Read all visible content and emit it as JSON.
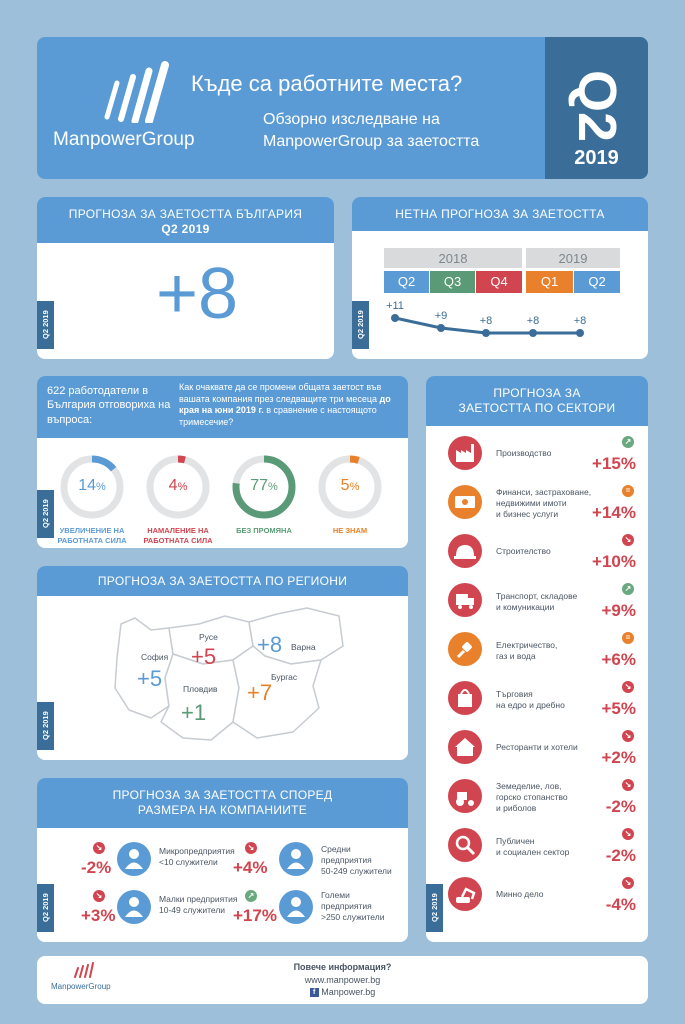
{
  "header": {
    "brand": "ManpowerGroup",
    "title": "Къде са работните места?",
    "subtitle_line1": "Обзорно изследване на",
    "subtitle_line2": "ManpowerGroup за заетостта",
    "quarter": "Q2",
    "year": "2019"
  },
  "tag": "Q2 2019",
  "bg_forecast": {
    "title": "ПРОГНОЗА ЗА ЗАЕТОСТТА БЪЛГАРИЯ",
    "period": "Q2 2019",
    "value": "+8"
  },
  "net_forecast": {
    "title": "НЕТНА ПРОГНОЗА ЗА ЗАЕТОСТТА",
    "year_2018": "2018",
    "year_2019": "2019",
    "quarters": [
      "Q2",
      "Q3",
      "Q4",
      "Q1",
      "Q2"
    ],
    "values_label": [
      "+11",
      "+9",
      "+8",
      "+8",
      "+8"
    ],
    "values": [
      11,
      9,
      8,
      8,
      8
    ]
  },
  "survey": {
    "employers": "622 работодатели в България отговориха на въпроса:",
    "question_pre": "Как очаквате да се промени общата заетост във вашата компания през следващите три месеца ",
    "question_bold": "до края на юни 2019 г.",
    "question_post": " в сравнение с настоящото тримесечие?",
    "items": [
      {
        "pct": 14,
        "value": "14",
        "unit": "%",
        "label_line1": "УВЕЛИЧЕНИЕ НА",
        "label_line2": "РАБОТНАТА СИЛА",
        "color": "#5b9bd5"
      },
      {
        "pct": 4,
        "value": "4",
        "unit": "%",
        "label_line1": "НАМАЛЕНИЕ НА",
        "label_line2": "РАБОТНАТА СИЛА",
        "color": "#d0454f"
      },
      {
        "pct": 77,
        "value": "77",
        "unit": "%",
        "label_line1": "БЕЗ ПРОМЯНА",
        "label_line2": "",
        "color": "#5a9a76"
      },
      {
        "pct": 5,
        "value": "5",
        "unit": "%",
        "label_line1": "НЕ ЗНАМ",
        "label_line2": "",
        "color": "#e9802b"
      }
    ]
  },
  "regions": {
    "title": "ПРОГНОЗА ЗА ЗАЕТОСТТА ПО РЕГИОНИ",
    "items": [
      {
        "name": "Русе",
        "value": "+5"
      },
      {
        "name": "Варна",
        "value": "+8"
      },
      {
        "name": "София",
        "value": "+5"
      },
      {
        "name": "Пловдив",
        "value": "+1"
      },
      {
        "name": "Бургас",
        "value": "+7"
      }
    ]
  },
  "company_size": {
    "title_line1": "ПРОГНОЗА ЗА ЗАЕТОСТТА СПОРЕД",
    "title_line2": "РАЗМЕРА НА КОМПАНИИТЕ",
    "items": [
      {
        "value": "-2%",
        "line1": "Микропредприятия",
        "line2": "<10 служители",
        "line3": "",
        "trend": "down"
      },
      {
        "value": "+4%",
        "line1": "Средни",
        "line2": "предприятия",
        "line3": "50-249 служители",
        "trend": "down"
      },
      {
        "value": "+3%",
        "line1": "Малки предприятия",
        "line2": "10-49 служители",
        "line3": "",
        "trend": "down"
      },
      {
        "value": "+17%",
        "line1": "Големи",
        "line2": "предприятия",
        "line3": ">250 служители",
        "trend": "up"
      }
    ]
  },
  "sectors": {
    "title_line1": "ПРОГНОЗА ЗА",
    "title_line2": "ЗАЕТОСТТА ПО СЕКТОРИ",
    "items": [
      {
        "line1": "Производство",
        "line2": "",
        "line3": "",
        "value": "+15%",
        "trend": "up",
        "icon": "factory-icon"
      },
      {
        "line1": "Финанси, застраховане,",
        "line2": "недвижими имоти",
        "line3": "и бизнес услуги",
        "value": "+14%",
        "trend": "equal",
        "icon": "banknote-icon"
      },
      {
        "line1": "Строителство",
        "line2": "",
        "line3": "",
        "value": "+10%",
        "trend": "down",
        "icon": "hardhat-icon"
      },
      {
        "line1": "Транспорт, складове",
        "line2": "и комуникации",
        "line3": "",
        "value": "+9%",
        "trend": "up",
        "icon": "truck-icon"
      },
      {
        "line1": "Електричество,",
        "line2": "газ и вода",
        "line3": "",
        "value": "+6%",
        "trend": "equal",
        "icon": "plug-icon"
      },
      {
        "line1": "Търговия",
        "line2": "на едро и дребно",
        "line3": "",
        "value": "+5%",
        "trend": "down",
        "icon": "shopping-bag-icon"
      },
      {
        "line1": "Ресторанти и хотели",
        "line2": "",
        "line3": "",
        "value": "+2%",
        "trend": "down",
        "icon": "hotel-icon"
      },
      {
        "line1": "Земеделие, лов,",
        "line2": "горско стопанство",
        "line3": "и риболов",
        "value": "-2%",
        "trend": "down",
        "icon": "tractor-icon"
      },
      {
        "line1": "Публичен",
        "line2": "и социален сектор",
        "line3": "",
        "value": "-2%",
        "trend": "down",
        "icon": "magnifier-person-icon"
      },
      {
        "line1": "Минно дело",
        "line2": "",
        "line3": "",
        "value": "-4%",
        "trend": "down",
        "icon": "excavator-icon"
      }
    ]
  },
  "footer": {
    "brand": "ManpowerGroup",
    "more_info": "Повече информация?",
    "website": "www.manpower.bg",
    "facebook": "Manpower.bg"
  },
  "chart_data": {
    "type": "line",
    "title": "НЕТНА ПРОГНОЗА ЗА ЗАЕТОСТТА",
    "categories": [
      "Q2 2018",
      "Q3 2018",
      "Q4 2018",
      "Q1 2019",
      "Q2 2019"
    ],
    "values": [
      11,
      9,
      8,
      8,
      8
    ]
  }
}
